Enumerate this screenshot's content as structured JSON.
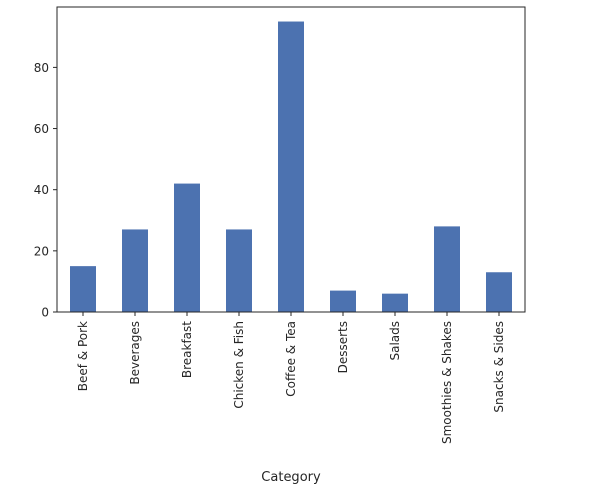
{
  "chart_data": {
    "type": "bar",
    "title": "",
    "xlabel": "Category",
    "ylabel": "",
    "categories": [
      "Beef & Pork",
      "Beverages",
      "Breakfast",
      "Chicken & Fish",
      "Coffee & Tea",
      "Desserts",
      "Salads",
      "Smoothies & Shakes",
      "Snacks & Sides"
    ],
    "values": [
      15,
      27,
      42,
      27,
      95,
      7,
      6,
      28,
      13
    ],
    "ylim": [
      0,
      99.75
    ],
    "yticks": [
      0,
      20,
      40,
      60,
      80
    ],
    "grid": false,
    "bar_color": "#4c72b0"
  }
}
